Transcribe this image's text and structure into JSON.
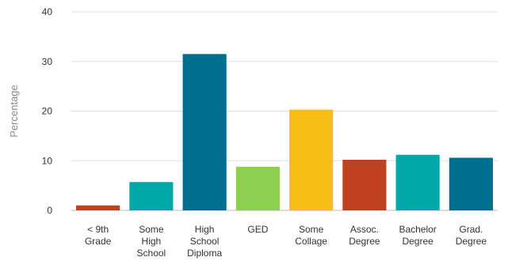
{
  "chart_data": {
    "type": "bar",
    "title": "",
    "xlabel": "",
    "ylabel": "Percentage",
    "ylim": [
      0,
      40
    ],
    "yticks": [
      0,
      10,
      20,
      30,
      40
    ],
    "grid": true,
    "legend": "none",
    "categories": [
      [
        "< 9th",
        "Grade"
      ],
      [
        "Some",
        "High",
        "School"
      ],
      [
        "High",
        "School",
        "Diploma"
      ],
      [
        "GED"
      ],
      [
        "Some",
        "Collage"
      ],
      [
        "Assoc.",
        "Degree"
      ],
      [
        "Bachelor",
        "Degree"
      ],
      [
        "Grad.",
        "Degree"
      ]
    ],
    "values": [
      1.0,
      5.7,
      31.5,
      8.8,
      20.3,
      10.2,
      11.2,
      10.6
    ],
    "colors": [
      "#c0411f",
      "#00a8a8",
      "#006e8f",
      "#8ecf4f",
      "#f7bf16",
      "#c0411f",
      "#00a8a8",
      "#006e8f"
    ]
  }
}
